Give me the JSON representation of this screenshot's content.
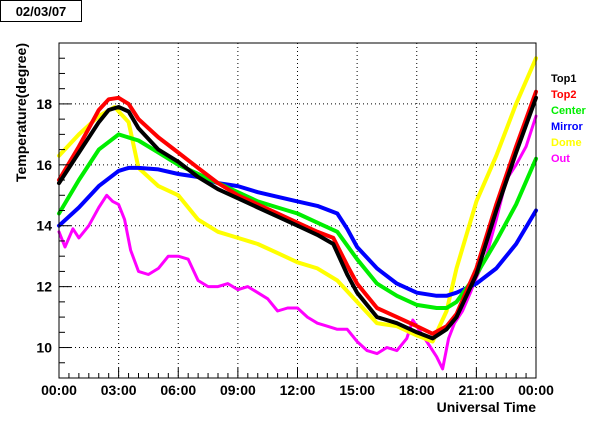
{
  "chart_data": {
    "type": "line",
    "date_label": "02/03/07",
    "xlabel": "Universal Time",
    "ylabel": "Temperature(degree)",
    "xlim": [
      0,
      24
    ],
    "ylim": [
      9,
      20
    ],
    "grid": true,
    "legend_placement": "right",
    "x_ticks": [
      {
        "value": 0,
        "label": "00:00"
      },
      {
        "value": 3,
        "label": "03:00"
      },
      {
        "value": 6,
        "label": "06:00"
      },
      {
        "value": 9,
        "label": "09:00"
      },
      {
        "value": 12,
        "label": "12:00"
      },
      {
        "value": 15,
        "label": "15:00"
      },
      {
        "value": 18,
        "label": "18:00"
      },
      {
        "value": 21,
        "label": "21:00"
      },
      {
        "value": 24,
        "label": "00:00"
      }
    ],
    "y_ticks": [
      {
        "value": 10,
        "label": "10"
      },
      {
        "value": 12,
        "label": "12"
      },
      {
        "value": 14,
        "label": "14"
      },
      {
        "value": 16,
        "label": "16"
      },
      {
        "value": 18,
        "label": "18"
      }
    ],
    "series": [
      {
        "name": "Top1",
        "color": "#000000",
        "x": [
          0,
          1,
          2,
          2.5,
          3,
          3.5,
          4,
          5,
          6,
          7,
          8,
          9,
          10,
          11,
          12,
          13,
          13.8,
          14.5,
          15,
          16,
          17,
          18,
          18.8,
          19.5,
          20,
          21,
          22,
          23,
          24
        ],
        "y": [
          15.4,
          16.4,
          17.4,
          17.8,
          17.9,
          17.75,
          17.2,
          16.5,
          16.1,
          15.6,
          15.2,
          14.9,
          14.6,
          14.3,
          14.0,
          13.7,
          13.4,
          12.4,
          11.8,
          11.0,
          10.8,
          10.5,
          10.3,
          10.6,
          11.0,
          12.4,
          14.5,
          16.4,
          18.2
        ]
      },
      {
        "name": "Top2",
        "color": "#ff0000",
        "x": [
          0,
          1,
          2,
          2.5,
          3,
          3.5,
          4,
          5,
          6,
          7,
          8,
          9,
          10,
          11,
          12,
          13,
          13.8,
          14.5,
          15,
          16,
          17,
          18,
          18.8,
          19.5,
          20,
          21,
          22,
          23,
          24
        ],
        "y": [
          15.5,
          16.6,
          17.8,
          18.15,
          18.2,
          18.0,
          17.5,
          16.9,
          16.4,
          15.9,
          15.4,
          15.0,
          14.7,
          14.4,
          14.1,
          13.8,
          13.6,
          12.7,
          12.1,
          11.3,
          11.0,
          10.7,
          10.45,
          10.7,
          11.1,
          12.6,
          14.7,
          16.6,
          18.4
        ]
      },
      {
        "name": "Center",
        "color": "#00ee00",
        "x": [
          0,
          1,
          2,
          3,
          4,
          5,
          6,
          7,
          8,
          9,
          10,
          11,
          12,
          13,
          14,
          15,
          16,
          17,
          18,
          19,
          19.5,
          20,
          21,
          22,
          23,
          24
        ],
        "y": [
          14.4,
          15.5,
          16.5,
          17.0,
          16.8,
          16.4,
          16.0,
          15.7,
          15.4,
          15.1,
          14.8,
          14.6,
          14.4,
          14.1,
          13.8,
          12.9,
          12.1,
          11.7,
          11.4,
          11.3,
          11.3,
          11.5,
          12.4,
          13.5,
          14.7,
          16.2
        ]
      },
      {
        "name": "Mirror",
        "color": "#0000ff",
        "x": [
          0,
          1,
          2,
          3,
          3.5,
          4,
          5,
          6,
          7,
          8,
          9,
          10,
          11,
          12,
          13,
          14,
          14.5,
          15,
          16,
          17,
          18,
          19,
          19.5,
          20,
          21,
          22,
          23,
          24
        ],
        "y": [
          14.0,
          14.6,
          15.3,
          15.8,
          15.9,
          15.9,
          15.85,
          15.7,
          15.6,
          15.4,
          15.3,
          15.1,
          14.95,
          14.8,
          14.65,
          14.4,
          13.9,
          13.3,
          12.6,
          12.1,
          11.8,
          11.7,
          11.7,
          11.8,
          12.1,
          12.6,
          13.4,
          14.5
        ]
      },
      {
        "name": "Dome",
        "color": "#ffff00",
        "x": [
          0,
          1,
          2,
          2.8,
          3.5,
          4,
          5,
          6,
          7,
          8,
          9,
          10,
          11,
          12,
          13,
          14,
          15,
          16,
          17,
          18,
          18.8,
          19.5,
          20,
          21,
          22,
          23,
          24
        ],
        "y": [
          16.3,
          17.0,
          17.6,
          17.9,
          17.4,
          15.9,
          15.3,
          15.0,
          14.2,
          13.8,
          13.6,
          13.4,
          13.1,
          12.8,
          12.6,
          12.2,
          11.5,
          10.8,
          10.7,
          10.4,
          10.2,
          11.2,
          12.6,
          14.8,
          16.3,
          18.0,
          19.5
        ]
      },
      {
        "name": "Out",
        "color": "#ff00ff",
        "x": [
          0,
          0.3,
          0.7,
          1,
          1.5,
          2,
          2.4,
          2.7,
          3,
          3.3,
          3.6,
          4,
          4.5,
          5,
          5.5,
          6,
          6.5,
          7,
          7.5,
          8,
          8.5,
          9,
          9.5,
          10,
          10.5,
          11,
          11.5,
          12,
          12.5,
          13,
          13.5,
          14,
          14.5,
          15,
          15.5,
          16,
          16.5,
          17,
          17.5,
          17.8,
          18.2,
          18.6,
          19,
          19.3,
          19.6,
          19.9,
          20.3,
          20.7,
          21,
          21.5,
          22,
          22.5,
          23,
          23.5,
          24
        ],
        "y": [
          13.8,
          13.3,
          13.9,
          13.6,
          14.0,
          14.6,
          15.0,
          14.8,
          14.7,
          14.2,
          13.2,
          12.5,
          12.4,
          12.6,
          13.0,
          13.0,
          12.9,
          12.2,
          12.0,
          12.0,
          12.1,
          11.9,
          12.0,
          11.8,
          11.6,
          11.2,
          11.3,
          11.3,
          11.0,
          10.8,
          10.7,
          10.6,
          10.6,
          10.2,
          9.9,
          9.8,
          10.0,
          9.9,
          10.3,
          10.9,
          10.5,
          10.1,
          9.7,
          9.3,
          10.3,
          10.8,
          11.2,
          11.8,
          12.3,
          13.0,
          14.2,
          15.5,
          16.0,
          16.6,
          17.6
        ]
      }
    ]
  }
}
